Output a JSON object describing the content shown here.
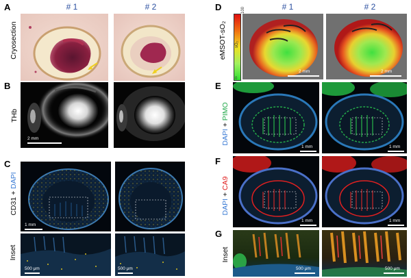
{
  "panels": {
    "A": {
      "letter": "A",
      "label": "Cryosection"
    },
    "B": {
      "letter": "B",
      "label": "THb",
      "scale": "2 mm"
    },
    "C": {
      "letter": "C",
      "label_part1": "CD31",
      "label_sep": " + ",
      "label_part2": "DAPI",
      "scale": "1 mm"
    },
    "C_inset": {
      "label": "Inset",
      "scale1": "500 μm",
      "scale2": "500 μm"
    },
    "D": {
      "letter": "D",
      "label": "eMSOT-sO₂",
      "scale1": "2 mm",
      "scale2": "2 mm",
      "colorbar_max": "100",
      "colorbar_min": "0",
      "colorbar_title": "sO₂"
    },
    "E": {
      "letter": "E",
      "label_part1": "DAPI",
      "label_sep": " + ",
      "label_part2": "PIMO",
      "scale1": "1 mm",
      "scale2": "1 mm"
    },
    "F": {
      "letter": "F",
      "label_part1": "DAPI",
      "label_sep": " + ",
      "label_part2": "CA9",
      "scale1": "1 mm",
      "scale2": "1 mm"
    },
    "G": {
      "letter": "G",
      "label": "Inset",
      "scale1": "500 μm",
      "scale2": "500 μm"
    }
  },
  "columns": {
    "left_1": "# 1",
    "left_2": "# 2",
    "right_1": "# 1",
    "right_2": "# 2"
  },
  "colors": {
    "blue_label": "#2a4fa0",
    "dapi": "#3a7bd5",
    "pimo": "#22a84a",
    "ca9": "#e02020",
    "cd31": "#d8c020"
  }
}
